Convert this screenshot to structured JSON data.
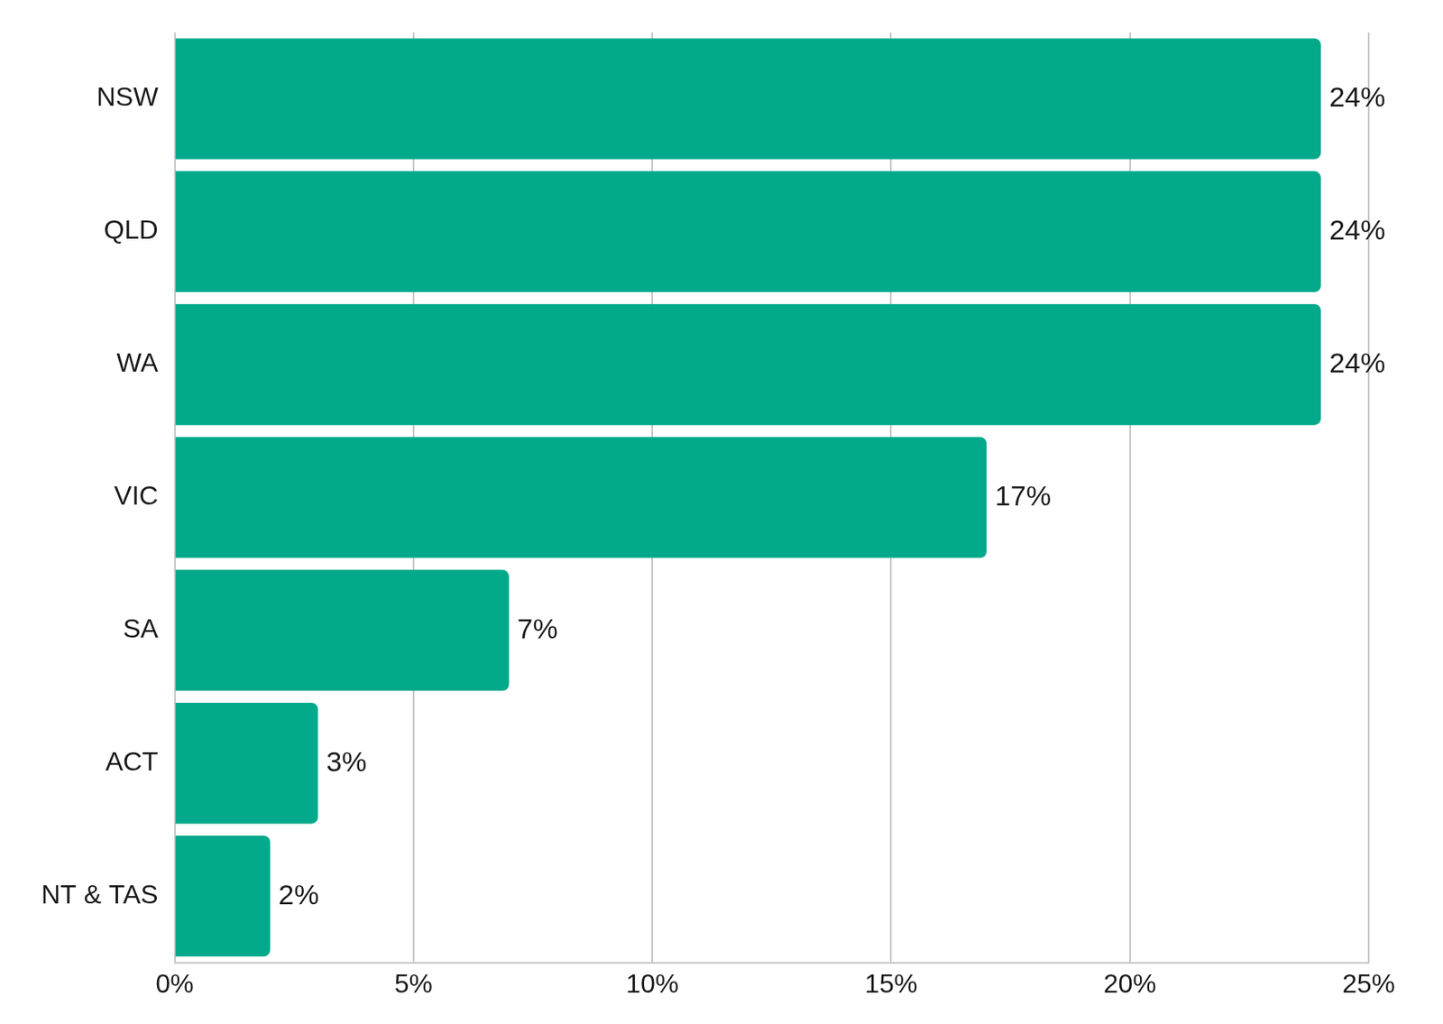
{
  "chart_data": {
    "type": "bar",
    "orientation": "horizontal",
    "categories": [
      "NSW",
      "QLD",
      "WA",
      "VIC",
      "SA",
      "ACT",
      "NT & TAS"
    ],
    "values": [
      24,
      24,
      24,
      17,
      7,
      3,
      2
    ],
    "value_labels": [
      "24%",
      "24%",
      "24%",
      "17%",
      "7%",
      "3%",
      "2%"
    ],
    "data_labels": true,
    "color": "#02a98b",
    "xlim": [
      0,
      25
    ],
    "xticks": [
      {
        "value": 0,
        "label": "0%"
      },
      {
        "value": 5,
        "label": "5%"
      },
      {
        "value": 10,
        "label": "10%"
      },
      {
        "value": 15,
        "label": "15%"
      },
      {
        "value": 20,
        "label": "20%"
      },
      {
        "value": 25,
        "label": "25%"
      }
    ],
    "grid": true
  }
}
